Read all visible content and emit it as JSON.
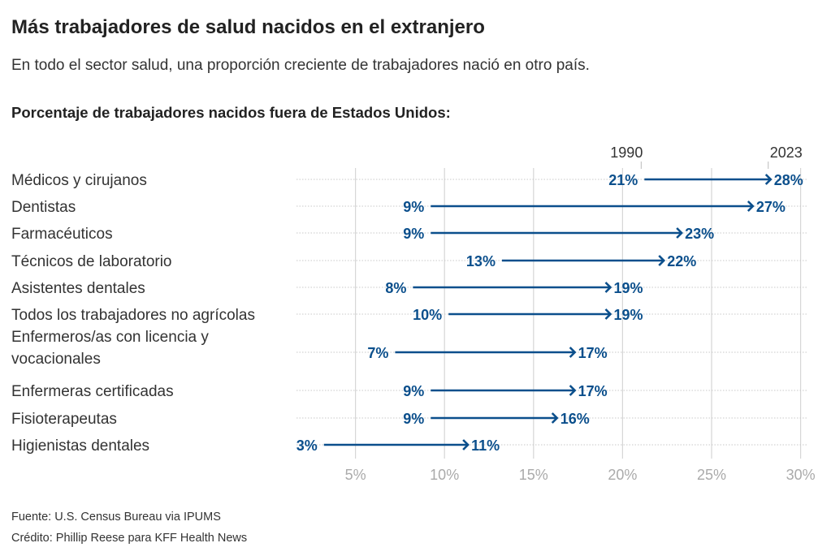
{
  "header": {
    "title": "Más trabajadores de salud nacidos en el extranjero",
    "subtitle": "En todo el sector salud, una proporción creciente de trabajadores nació en otro país.",
    "chart_heading": "Porcentaje de trabajadores nacidos fuera de Estados Unidos:"
  },
  "footer": {
    "source": "Fuente: U.S. Census Bureau via IPUMS",
    "credit": "Crédito: Phillip Reese para KFF Health News"
  },
  "chart_data": {
    "type": "arrow",
    "title": "Porcentaje de trabajadores nacidos fuera de Estados Unidos:",
    "series_labels": [
      "1990",
      "2023"
    ],
    "color": "#0b4f8c",
    "categories": [
      [
        "Médicos y cirujanos"
      ],
      [
        "Dentistas"
      ],
      [
        "Farmacéuticos"
      ],
      [
        "Técnicos de laboratorio"
      ],
      [
        "Asistentes dentales"
      ],
      [
        "Todos los trabajadores no agrícolas"
      ],
      [
        "Enfermeros/as con licencia y",
        "vocacionales"
      ],
      [
        "Enfermeras certificadas"
      ],
      [
        "Fisioterapeutas"
      ],
      [
        "Higienistas dentales"
      ]
    ],
    "values_1990": [
      21,
      9,
      9,
      13,
      8,
      10,
      7,
      9,
      9,
      3
    ],
    "values_2023": [
      28,
      27,
      23,
      22,
      19,
      19,
      17,
      17,
      16,
      11
    ],
    "value_labels_1990": [
      "21%",
      "9%",
      "9%",
      "13%",
      "8%",
      "10%",
      "7%",
      "9%",
      "9%",
      "3%"
    ],
    "value_labels_2023": [
      "28%",
      "27%",
      "23%",
      "22%",
      "19%",
      "19%",
      "17%",
      "17%",
      "16%",
      "11%"
    ],
    "x_ticks": [
      5,
      10,
      15,
      20,
      25,
      30
    ],
    "x_tick_labels": [
      "5%",
      "10%",
      "15%",
      "20%",
      "25%",
      "30%"
    ],
    "grid": true
  }
}
